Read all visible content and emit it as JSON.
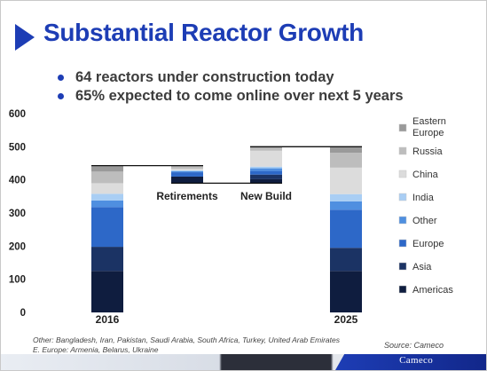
{
  "slide": {
    "title": "Substantial Reactor Growth",
    "bullets": [
      "64 reactors under construction today",
      "65% expected to come online over next 5 years"
    ],
    "footnote": [
      "Other: Bangladesh, Iran, Pakistan, Saudi Arabia, South Africa, Turkey, United Arab Emirates",
      "E. Europe: Armenia, Belarus, Ukraine"
    ],
    "source": "Source: Cameco",
    "footer_logo": "Cameco",
    "colors": {
      "title": "#1d3db5",
      "bullet": "#1d3db5",
      "connector": "#111111"
    }
  },
  "chart_data": {
    "type": "bar",
    "subtype": "stacked waterfall",
    "ylim": [
      0,
      600
    ],
    "yticks": [
      0,
      100,
      200,
      300,
      400,
      500,
      600
    ],
    "grid": false,
    "legend_position": "right",
    "series": [
      {
        "name": "Americas",
        "color": "#0f1d3f"
      },
      {
        "name": "Asia",
        "color": "#1b3364"
      },
      {
        "name": "Europe",
        "color": "#2d68c8"
      },
      {
        "name": "Other",
        "color": "#4f8fe0"
      },
      {
        "name": "India",
        "color": "#a9cef4"
      },
      {
        "name": "China",
        "color": "#dcdcdc"
      },
      {
        "name": "Russia",
        "color": "#bdbdbd"
      },
      {
        "name": "Eastern Europe",
        "color": "#9a9a9a"
      }
    ],
    "bars": [
      {
        "label": "2016",
        "base": 0,
        "total": 443,
        "segments": {
          "Americas": 125,
          "Asia": 73,
          "Europe": 120,
          "Other": 20,
          "India": 20,
          "China": 32,
          "Russia": 35,
          "Eastern Europe": 18
        }
      },
      {
        "label": "Retirements",
        "base": 390,
        "total": 53,
        "segments": {
          "Americas": 20,
          "Asia": 0,
          "Europe": 13,
          "Other": 3,
          "India": 3,
          "China": 4,
          "Russia": 7,
          "Eastern Europe": 3
        }
      },
      {
        "label": "New Build",
        "base": 390,
        "total": 110,
        "segments": {
          "Americas": 12,
          "Asia": 14,
          "Europe": 11,
          "Other": 8,
          "India": 5,
          "China": 48,
          "Russia": 8,
          "Eastern Europe": 4
        }
      },
      {
        "label": "2025",
        "base": 0,
        "total": 500,
        "segments": {
          "Americas": 125,
          "Asia": 70,
          "Europe": 115,
          "Other": 25,
          "India": 22,
          "China": 80,
          "Russia": 45,
          "Eastern Europe": 18
        }
      }
    ]
  }
}
